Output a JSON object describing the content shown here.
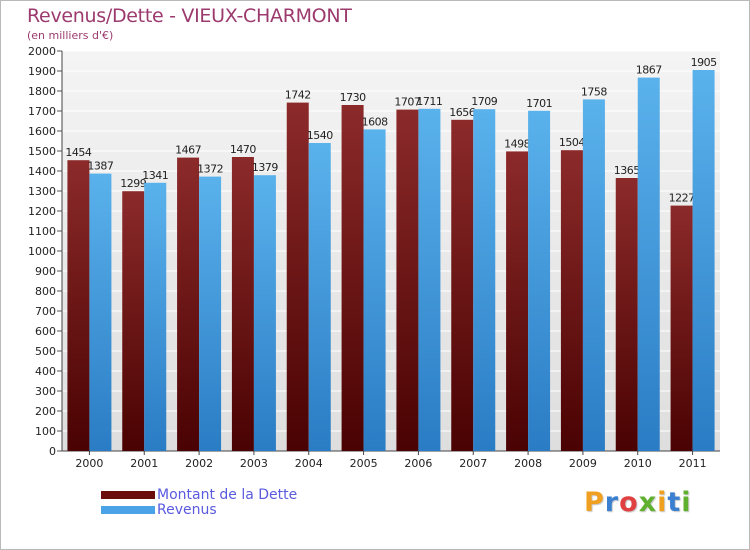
{
  "header": {
    "title": "Revenus/Dette - VIEUX-CHARMONT",
    "subtitle": "(en milliers d'€)"
  },
  "chart_data": {
    "type": "bar",
    "title": "Revenus/Dette - VIEUX-CHARMONT",
    "ylabel": "(en milliers d'€)",
    "xlabel": "",
    "ylim": [
      0,
      2000
    ],
    "yticks": [
      0,
      100,
      200,
      300,
      400,
      500,
      600,
      700,
      800,
      900,
      1000,
      1100,
      1200,
      1300,
      1400,
      1500,
      1600,
      1700,
      1800,
      1900,
      2000
    ],
    "grid": true,
    "legend_position": "bottom-left",
    "categories": [
      "2000",
      "2001",
      "2002",
      "2003",
      "2004",
      "2005",
      "2006",
      "2007",
      "2008",
      "2009",
      "2010",
      "2011"
    ],
    "series": [
      {
        "name": "Montant de la Dette",
        "color": "#7a1a1a",
        "values": [
          1454,
          1299,
          1467,
          1470,
          1742,
          1730,
          1707,
          1656,
          1498,
          1504,
          1365,
          1227
        ]
      },
      {
        "name": "Revenus",
        "color": "#4aa3e6",
        "values": [
          1387,
          1341,
          1372,
          1379,
          1540,
          1608,
          1711,
          1709,
          1701,
          1758,
          1867,
          1905
        ]
      }
    ]
  },
  "legend": {
    "items": [
      {
        "label": "Montant de la Dette",
        "color": "#6b0d0d"
      },
      {
        "label": "Revenus",
        "color": "#4aa3e6"
      }
    ]
  },
  "logo": {
    "letters": [
      "P",
      "r",
      "o",
      "x",
      "i",
      "t",
      "i"
    ],
    "colors": [
      "#f0a020",
      "#3a7fd0",
      "#e04040",
      "#60b030",
      "#f0a020",
      "#3a7fd0",
      "#60b030"
    ]
  }
}
